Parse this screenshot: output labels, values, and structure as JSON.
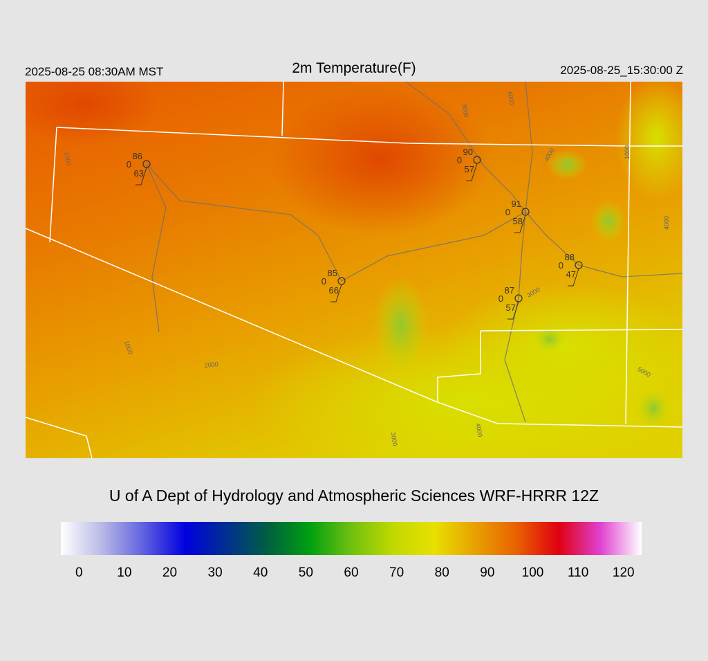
{
  "header": {
    "local_time": "2025-08-25 08:30AM MST",
    "title": "2m Temperature(F)",
    "utc_time": "2025-08-25_15:30:00 Z"
  },
  "map": {
    "stations": [
      {
        "temp": "86",
        "wind": "0",
        "dewpoint": "63"
      },
      {
        "temp": "90",
        "wind": "0",
        "dewpoint": "57"
      },
      {
        "temp": "91",
        "wind": "0",
        "dewpoint": "58"
      },
      {
        "temp": "88",
        "wind": "0",
        "dewpoint": "47"
      },
      {
        "temp": "85",
        "wind": "0",
        "dewpoint": "66"
      },
      {
        "temp": "87",
        "wind": "0",
        "dewpoint": "57"
      }
    ],
    "contour_labels": [
      "1000",
      "1000",
      "2000",
      "3000",
      "4000",
      "3000",
      "4000",
      "4000",
      "5000",
      "3000",
      "4000",
      "1000"
    ]
  },
  "footer": {
    "credit": "U of A Dept of Hydrology and Atmospheric Sciences WRF-HRRR 12Z"
  },
  "colorbar": {
    "lim": [
      -4,
      124
    ],
    "ticks": [
      0,
      10,
      20,
      30,
      40,
      50,
      60,
      70,
      80,
      90,
      100,
      110,
      120
    ],
    "colors": [
      "#ffffff",
      "#b8b8e6",
      "#6060e0",
      "#0000e0",
      "#003090",
      "#006040",
      "#00a010",
      "#70c010",
      "#c0d800",
      "#e8e000",
      "#e8a000",
      "#e86000",
      "#e00010",
      "#e040d0",
      "#ffffff"
    ]
  }
}
